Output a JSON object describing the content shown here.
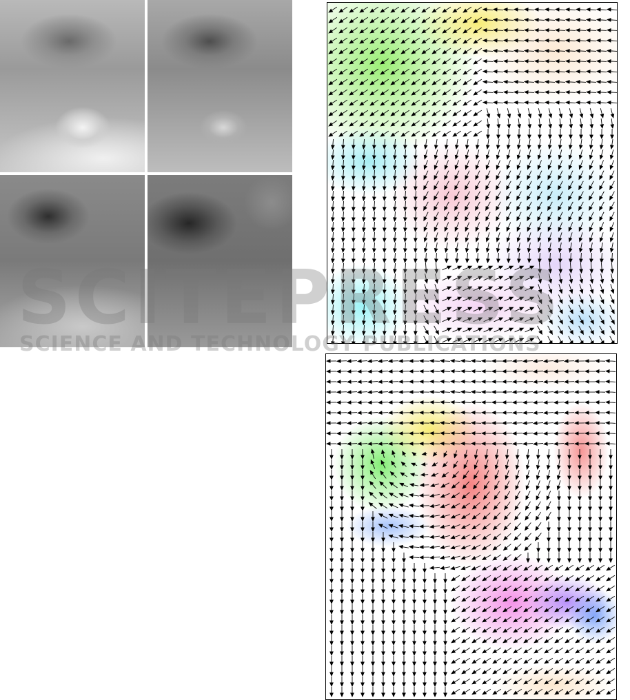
{
  "figure": {
    "image_panels": [
      {
        "id": "frame-1",
        "kind": "grayscale-image"
      },
      {
        "id": "frame-2",
        "kind": "grayscale-image"
      },
      {
        "id": "frame-3",
        "kind": "grayscale-image"
      },
      {
        "id": "frame-4",
        "kind": "grayscale-image"
      }
    ],
    "vector_fields": [
      {
        "id": "flow-field-top",
        "kind": "color-coded-motion-field"
      },
      {
        "id": "flow-field-bottom",
        "kind": "color-coded-motion-field"
      }
    ],
    "colors": {
      "arrow": "#000000",
      "border": "#000000"
    }
  },
  "watermark": {
    "logo_text": "SCITEPRESS",
    "tagline": "SCIENCE AND TECHNOLOGY PUBLICATIONS"
  }
}
